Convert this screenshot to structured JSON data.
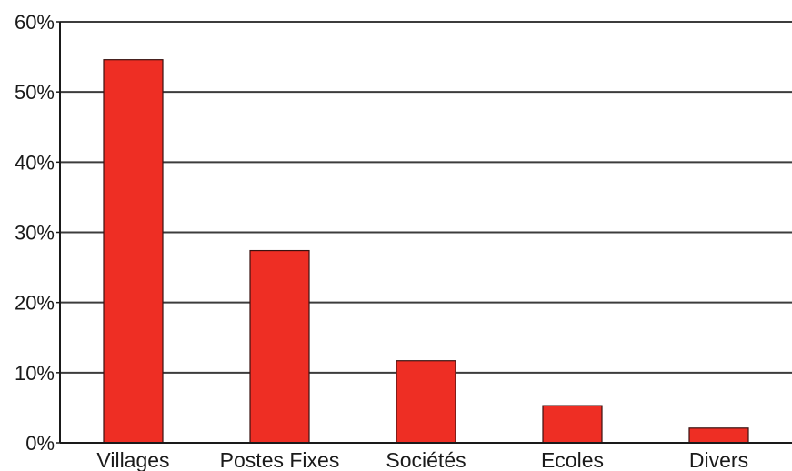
{
  "chart_data": {
    "type": "bar",
    "title": "",
    "xlabel": "",
    "ylabel": "",
    "categories": [
      "Villages",
      "Postes Fixes",
      "Sociétés",
      "Ecoles",
      "Divers"
    ],
    "values": [
      54.6,
      27.4,
      11.7,
      5.3,
      2.1
    ],
    "ylim": [
      0,
      60
    ],
    "yticks": [
      0,
      10,
      20,
      30,
      40,
      50,
      60
    ],
    "ytick_labels": [
      "0%",
      "10%",
      "20%",
      "30%",
      "40%",
      "50%",
      "60%"
    ],
    "grid": true,
    "legend": "none",
    "colors": {
      "bar_fill": "#ee2e24",
      "bar_stroke": "#3a1210",
      "grid": "#3c3c3c",
      "axis": "#1a1a1a"
    }
  }
}
